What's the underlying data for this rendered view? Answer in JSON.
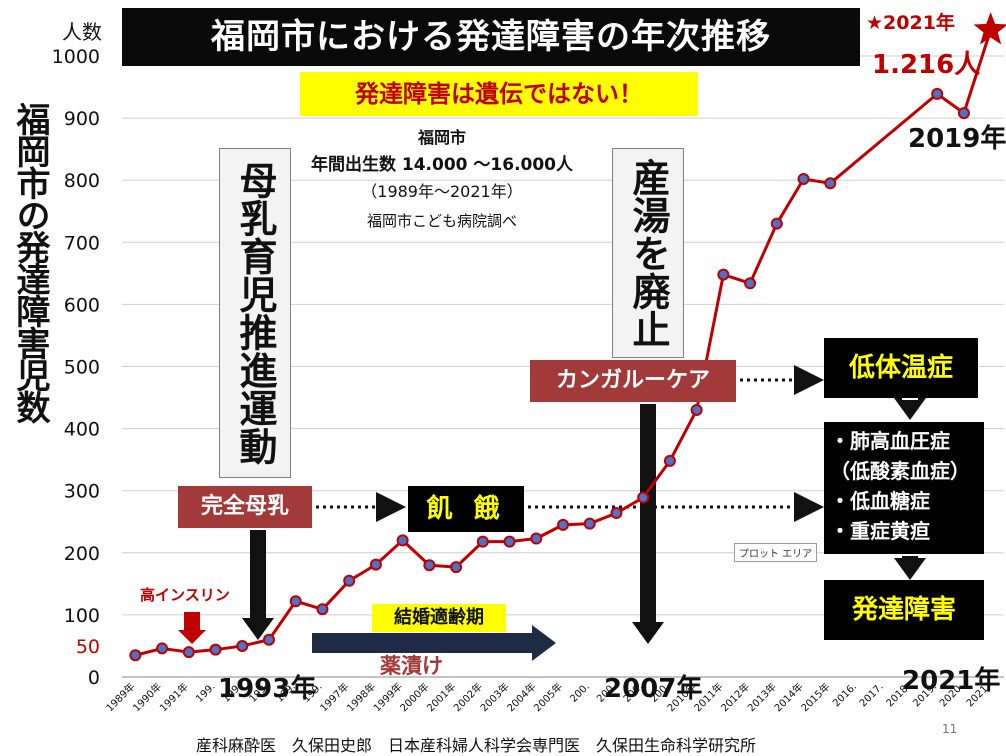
{
  "title": "福岡市における発達障害の年次推移",
  "y_unit": "人数",
  "y_axis_title": "福岡市の発達障害児数",
  "star_note": "★2021年",
  "star_count": "1.216人",
  "callout_main": "発達障害は遺伝ではない！",
  "info": {
    "line1": "福岡市",
    "line2": "年間出生数 14.000 ～16.000人",
    "line3": "（1989年～2021年）",
    "line4": "福岡市こども病院調べ"
  },
  "labels": {
    "breastfeeding_campaign": "母乳育児推進運動",
    "bath_abolished": "産湯を廃止",
    "full_breastfeeding": "完全母乳",
    "kangaroo_care": "カンガルーケア",
    "hunger": "飢 餓",
    "hypothermia": "低体温症",
    "conditions": [
      "・肺高血圧症",
      "（低酸素血症）",
      "・低血糖症",
      "・重症黄疸"
    ],
    "developmental_disorder": "発達障害",
    "high_insulin": "高インスリン",
    "marriage_age": "結婚適齢期",
    "drug_dependence": "薬漬け",
    "year_1993": "1993年",
    "year_2007": "2007年",
    "year_2019": "2019年",
    "year_2021": "2021年",
    "plot_area": "プロット エリア",
    "credit": "産科麻酔医　久保田史郎　日本産科婦人科学会専門医　久保田生命科学研究所",
    "page_number": "11"
  },
  "colors": {
    "line": "#c00000",
    "marker": "#4a74c9",
    "maroon": "#a23a3a",
    "yellow": "#ffff00",
    "black": "#000000"
  },
  "chart_data": {
    "type": "line",
    "title": "福岡市における発達障害の年次推移",
    "ylabel": "福岡市の発達障害児数",
    "ylim": [
      0,
      1000
    ],
    "yticks": [
      0,
      100,
      200,
      300,
      400,
      500,
      600,
      700,
      800,
      900,
      1000
    ],
    "highlight_tick": {
      "value": 50,
      "label": "50",
      "color": "#c00000"
    },
    "grid": true,
    "categories": [
      "1989年",
      "1990年",
      "1991年",
      "199.",
      "199.",
      "199.",
      "199.",
      "199.",
      "1997年",
      "1998年",
      "1999年",
      "2000年",
      "2001年",
      "2002年",
      "2003年",
      "2004年",
      "2005年",
      "200.",
      "200.",
      "200.",
      "200.",
      "2010年",
      "2011年",
      "2012年",
      "2013年",
      "2014年",
      "2015年",
      "2016.",
      "2017.",
      "2018.",
      "2019.",
      "2020.",
      "2021."
    ],
    "series": [
      {
        "values": [
          35,
          46,
          40,
          44,
          50,
          60,
          122,
          109,
          155,
          181,
          220,
          180,
          177,
          218,
          218,
          223,
          245,
          247,
          264,
          289,
          348,
          430,
          648,
          634,
          730,
          802,
          795,
          null,
          null,
          null,
          939,
          908,
          1216
        ]
      }
    ]
  }
}
